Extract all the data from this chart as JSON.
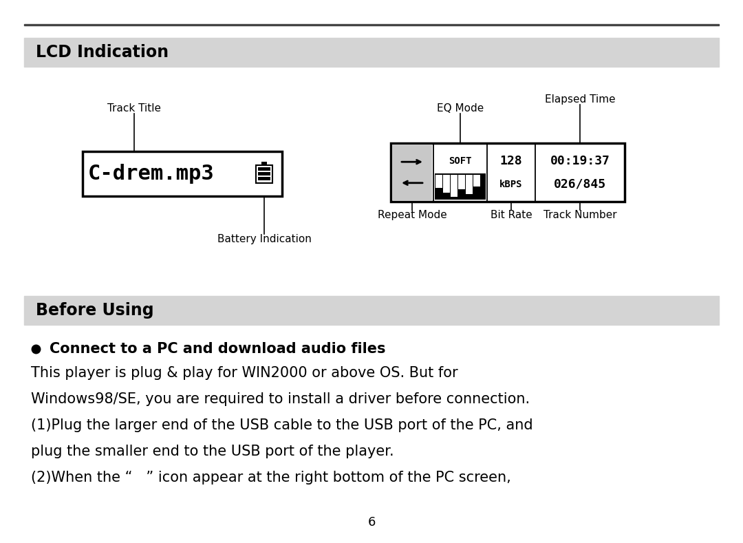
{
  "page_bg": "#ffffff",
  "header_bg": "#d4d4d4",
  "top_line_color": "#444444",
  "section1_title": "LCD Indication",
  "section2_title": "Before Using",
  "bullet_title": "Connect to a PC and download audio files",
  "body_lines": [
    "This player is plug & play for WIN2000 or above OS. But for",
    "Windows98/SE, you are required to install a driver before connection.",
    "(1)Plug the larger end of the USB cable to the USB port of the PC, and",
    "plug the smaller end to the USB port of the player.",
    "(2)When the “   ” icon appear at the right bottom of the PC screen,"
  ],
  "page_number": "6",
  "left_lcd_label": "Track Title",
  "left_lcd_battery_label": "Battery Indication",
  "right_labels_top": [
    "EQ Mode",
    "Elapsed Time"
  ],
  "right_labels_bottom": [
    "Repeat Mode",
    "Bit Rate",
    "Track Number"
  ]
}
